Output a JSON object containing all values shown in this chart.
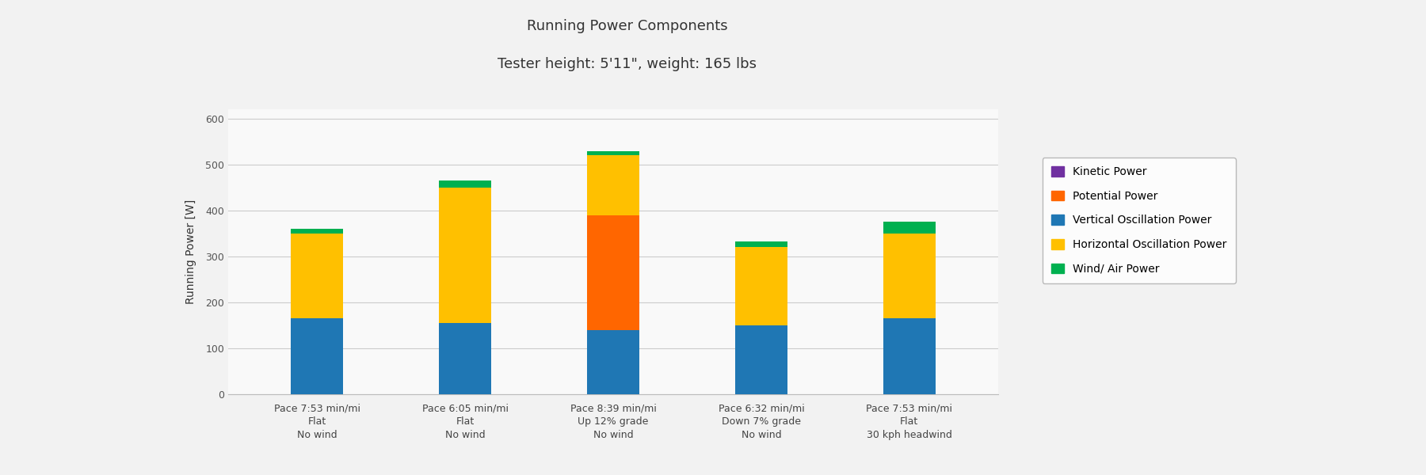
{
  "title_line1": "Running Power Components",
  "title_line2": "Tester height: 5'11\", weight: 165 lbs",
  "ylabel": "Running Power [W]",
  "ylim": [
    0,
    620
  ],
  "yticks": [
    0,
    100,
    200,
    300,
    400,
    500,
    600
  ],
  "background_color": "#f2f2f2",
  "plot_bg_color": "#f9f9f9",
  "categories": [
    "Pace 7:53 min/mi\nFlat\nNo wind",
    "Pace 6:05 min/mi\nFlat\nNo wind",
    "Pace 8:39 min/mi\nUp 12% grade\nNo wind",
    "Pace 6:32 min/mi\nDown 7% grade\nNo wind",
    "Pace 7:53 min/mi\nFlat\n30 kph headwind"
  ],
  "stack_order": [
    "Vertical Oscillation Power",
    "Potential Power",
    "Horizontal Oscillation Power",
    "Wind/ Air Power",
    "Kinetic Power"
  ],
  "components": {
    "Kinetic Power": [
      0,
      0,
      0,
      0,
      0
    ],
    "Potential Power": [
      0,
      0,
      250,
      0,
      0
    ],
    "Vertical Oscillation Power": [
      165,
      155,
      140,
      150,
      165
    ],
    "Horizontal Oscillation Power": [
      185,
      295,
      130,
      170,
      185
    ],
    "Wind/ Air Power": [
      10,
      15,
      8,
      12,
      25
    ]
  },
  "colors": {
    "Kinetic Power": "#7030A0",
    "Potential Power": "#FF6600",
    "Vertical Oscillation Power": "#1F77B4",
    "Horizontal Oscillation Power": "#FFC000",
    "Wind/ Air Power": "#00B050"
  },
  "legend_order": [
    "Kinetic Power",
    "Potential Power",
    "Vertical Oscillation Power",
    "Horizontal Oscillation Power",
    "Wind/ Air Power"
  ],
  "bar_width": 0.35,
  "title_fontsize": 13,
  "axis_fontsize": 10,
  "tick_fontsize": 9,
  "legend_fontsize": 10
}
